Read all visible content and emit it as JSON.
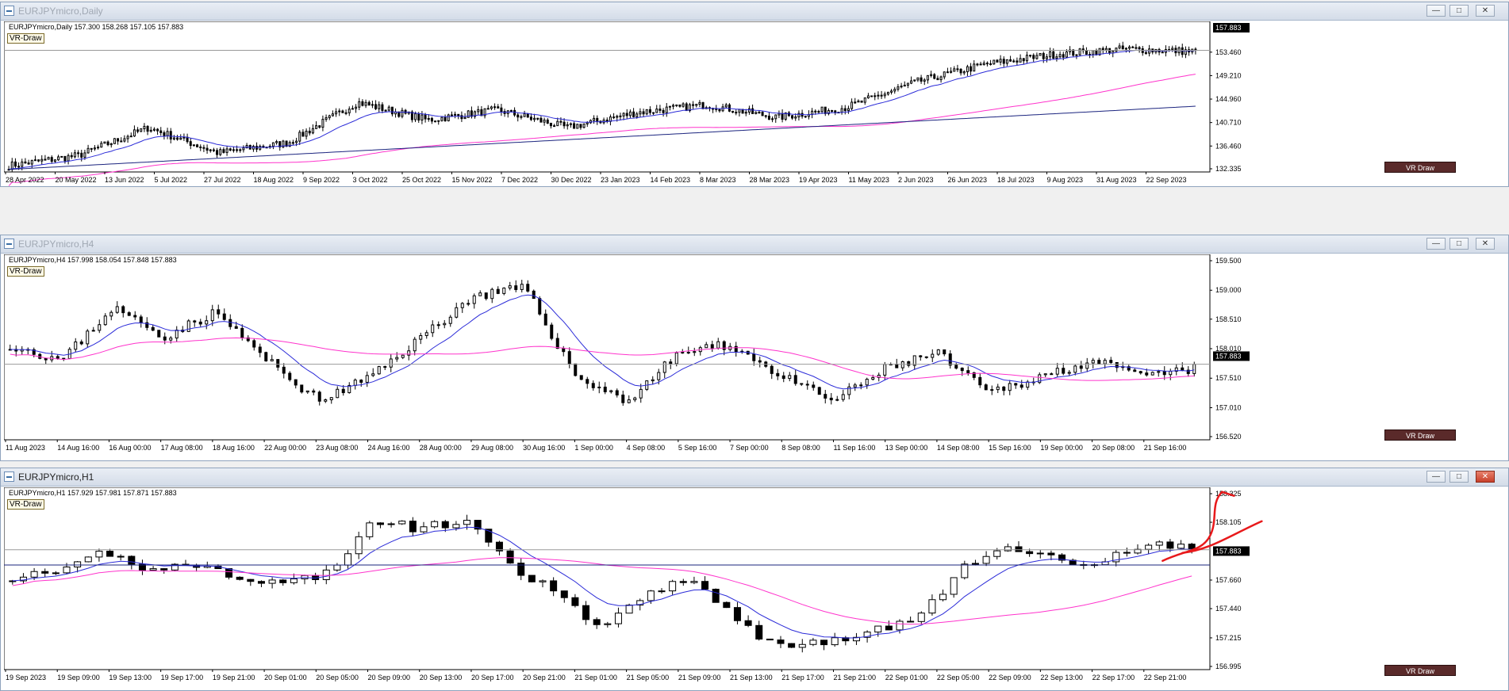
{
  "windows": [
    {
      "id": "daily",
      "title": "EURJPYmicro,Daily",
      "info": "EURJPYmicro,Daily  157.300 158.268 157.105 157.883",
      "vr_label": "VR-Draw",
      "vr_button": "VR Draw",
      "active": false,
      "price_ticks": [
        "132.335",
        "136.460",
        "140.710",
        "144.960",
        "149.210",
        "153.460",
        "157.883"
      ],
      "time_ticks": [
        "28 Apr 2022",
        "20 May 2022",
        "13 Jun 2022",
        "5 Jul 2022",
        "27 Jul 2022",
        "18 Aug 2022",
        "9 Sep 2022",
        "3 Oct 2022",
        "25 Oct 2022",
        "15 Nov 2022",
        "7 Dec 2022",
        "30 Dec 2022",
        "23 Jan 2023",
        "14 Feb 2023",
        "8 Mar 2023",
        "28 Mar 2023",
        "19 Apr 2023",
        "11 May 2023",
        "2 Jun 2023",
        "26 Jun 2023",
        "18 Jul 2023",
        "9 Aug 2023",
        "31 Aug 2023",
        "22 Sep 2023"
      ]
    },
    {
      "id": "h4",
      "title": "EURJPYmicro,H4",
      "info": "EURJPYmicro,H4  157.998 158.054 157.848 157.883",
      "vr_label": "VR-Draw",
      "vr_button": "VR Draw",
      "active": false,
      "price_ticks": [
        "156.520",
        "157.010",
        "157.510",
        "157.883",
        "158.010",
        "158.510",
        "159.000",
        "159.500"
      ],
      "time_ticks": [
        "11 Aug 2023",
        "14 Aug 16:00",
        "16 Aug 00:00",
        "17 Aug 08:00",
        "18 Aug 16:00",
        "22 Aug 00:00",
        "23 Aug 08:00",
        "24 Aug 16:00",
        "28 Aug 00:00",
        "29 Aug 08:00",
        "30 Aug 16:00",
        "1 Sep 00:00",
        "4 Sep 08:00",
        "5 Sep 16:00",
        "7 Sep 00:00",
        "8 Sep 08:00",
        "11 Sep 16:00",
        "13 Sep 00:00",
        "14 Sep 08:00",
        "15 Sep 16:00",
        "19 Sep 00:00",
        "20 Sep 08:00",
        "21 Sep 16:00"
      ]
    },
    {
      "id": "h1",
      "title": "EURJPYmicro,H1",
      "info": "EURJPYmicro,H1  157.929 157.981 157.871 157.883",
      "vr_label": "VR-Draw",
      "vr_button": "VR Draw",
      "active": true,
      "price_ticks": [
        "156.995",
        "157.215",
        "157.440",
        "157.660",
        "157.883",
        "158.105",
        "158.325"
      ],
      "time_ticks": [
        "19 Sep 2023",
        "19 Sep 09:00",
        "19 Sep 13:00",
        "19 Sep 17:00",
        "19 Sep 21:00",
        "20 Sep 01:00",
        "20 Sep 05:00",
        "20 Sep 09:00",
        "20 Sep 13:00",
        "20 Sep 17:00",
        "20 Sep 21:00",
        "21 Sep 01:00",
        "21 Sep 05:00",
        "21 Sep 09:00",
        "21 Sep 13:00",
        "21 Sep 17:00",
        "21 Sep 21:00",
        "22 Sep 01:00",
        "22 Sep 05:00",
        "22 Sep 09:00",
        "22 Sep 13:00",
        "22 Sep 17:00",
        "22 Sep 21:00"
      ]
    }
  ],
  "colors": {
    "ma_fast": "#2b2bd8",
    "ma_mid": "#ff33cc",
    "ma_slow": "#1a237e",
    "drawing": "#e8191b",
    "pricebox": "#000000"
  }
}
